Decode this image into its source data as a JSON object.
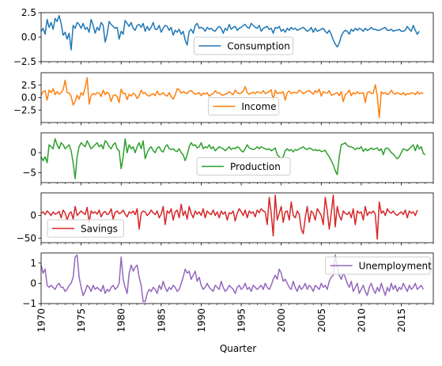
{
  "chart_data": {
    "type": "line",
    "xlabel": "Quarter",
    "x_start": 1970.0,
    "x_step": 0.25,
    "xlim": [
      1970,
      2019
    ],
    "x_ticks": [
      "1970",
      "1975",
      "1980",
      "1985",
      "1990",
      "1995",
      "2000",
      "2005",
      "2010",
      "2015"
    ],
    "legend_placement": "center",
    "panels": [
      {
        "name": "Consumption",
        "color": "#1f77b4",
        "ylim": [
          -2.5,
          2.5
        ],
        "yticks": [
          -2.5,
          0.0,
          2.5
        ],
        "ytick_labels": [
          "−2.5",
          "0.0",
          "2.5"
        ],
        "legend_placement": "center",
        "values": [
          0.6,
          0.9,
          0.3,
          1.8,
          1.0,
          1.5,
          0.8,
          1.9,
          1.6,
          2.2,
          1.4,
          0.2,
          0.5,
          -0.2,
          0.4,
          -1.3,
          1.2,
          0.9,
          1.5,
          1.3,
          0.9,
          1.4,
          0.8,
          1.0,
          0.5,
          1.8,
          1.2,
          0.4,
          1.0,
          0.7,
          1.5,
          1.2,
          -0.5,
          0.3,
          1.6,
          1.3,
          1.1,
          0.9,
          1.0,
          -0.2,
          0.6,
          0.3,
          1.7,
          1.4,
          1.1,
          1.5,
          0.9,
          0.7,
          1.2,
          1.3,
          1.0,
          1.4,
          0.6,
          1.1,
          0.7,
          1.0,
          1.5,
          0.8,
          0.8,
          1.2,
          0.5,
          0.9,
          1.2,
          1.1,
          0.7,
          1.0,
          0.2,
          0.7,
          0.5,
          0.8,
          0.3,
          0.6,
          -0.3,
          -0.8,
          0.6,
          0.8,
          0.4,
          1.2,
          1.4,
          0.9,
          1.0,
          0.9,
          0.6,
          1.0,
          0.8,
          0.9,
          0.7,
          0.6,
          0.9,
          1.1,
          0.9,
          0.4,
          0.9,
          0.7,
          1.3,
          0.8,
          1.0,
          1.1,
          0.7,
          0.9,
          1.0,
          1.2,
          1.3,
          1.0,
          0.9,
          1.4,
          1.2,
          1.0,
          0.9,
          1.2,
          0.6,
          0.9,
          1.0,
          1.1,
          0.8,
          0.9,
          0.4,
          1.0,
          0.9,
          1.1,
          0.6,
          0.8,
          0.5,
          0.9,
          0.7,
          1.0,
          0.8,
          0.9,
          0.7,
          0.8,
          0.9,
          1.0,
          0.8,
          0.6,
          0.7,
          1.0,
          0.5,
          0.9,
          0.6,
          0.7,
          0.8,
          0.9,
          0.6,
          0.4,
          0.7,
          0.3,
          -0.3,
          -0.7,
          -1.0,
          -0.6,
          0.1,
          0.5,
          0.7,
          0.6,
          0.3,
          0.8,
          0.6,
          0.9,
          0.7,
          0.9,
          0.8,
          0.6,
          0.9,
          0.7,
          0.8,
          1.0,
          0.8,
          0.8,
          0.7,
          0.7,
          0.8,
          0.9,
          1.0,
          0.7,
          0.7,
          0.8,
          0.6,
          0.7,
          0.7,
          0.8,
          0.6,
          0.6,
          0.7,
          1.1,
          0.8,
          0.6,
          1.2,
          0.7,
          0.3,
          0.6
        ]
      },
      {
        "name": "Income",
        "color": "#ff7f0e",
        "ylim": [
          -5,
          5
        ],
        "yticks": [
          -2.5,
          0.0,
          2.5
        ],
        "ytick_labels": [
          "−2.5",
          "0.0",
          "2.5"
        ],
        "legend_placement": "center",
        "values": [
          0.5,
          1.2,
          1.4,
          -0.5,
          1.5,
          1.0,
          1.8,
          0.6,
          1.2,
          0.7,
          1.0,
          1.6,
          3.5,
          1.0,
          0.9,
          0.3,
          -1.5,
          -0.8,
          0.5,
          -0.3,
          1.0,
          0.5,
          2.0,
          4.0,
          -1.3,
          0.4,
          0.8,
          0.6,
          1.0,
          0.9,
          0.2,
          1.5,
          0.6,
          1.1,
          0.7,
          -0.8,
          0.4,
          0.6,
          0.2,
          -1.0,
          1.7,
          0.8,
          0.9,
          -0.4,
          0.7,
          0.3,
          0.9,
          0.6,
          -0.2,
          0.4,
          1.5,
          0.8,
          1.0,
          0.5,
          0.3,
          0.6,
          0.8,
          0.4,
          1.3,
          0.6,
          0.7,
          1.0,
          0.5,
          0.3,
          1.0,
          0.2,
          -0.3,
          0.5,
          1.8,
          1.6,
          0.9,
          1.2,
          1.0,
          0.8,
          1.3,
          1.4,
          1.0,
          0.7,
          0.8,
          1.0,
          0.4,
          0.9,
          0.7,
          1.0,
          0.3,
          0.6,
          0.8,
          1.4,
          0.9,
          1.0,
          0.6,
          0.5,
          0.7,
          0.8,
          1.2,
          0.9,
          0.6,
          1.5,
          1.0,
          0.8,
          0.9,
          1.3,
          2.2,
          1.0,
          0.7,
          0.9,
          1.1,
          0.8,
          1.2,
          1.0,
          0.9,
          1.4,
          0.8,
          1.0,
          1.2,
          1.6,
          -0.5,
          1.5,
          0.8,
          1.0,
          0.9,
          1.2,
          -0.5,
          1.0,
          1.3,
          0.8,
          1.1,
          1.0,
          0.9,
          1.5,
          1.2,
          0.8,
          1.0,
          1.3,
          1.4,
          1.0,
          0.7,
          1.4,
          1.0,
          1.7,
          0.3,
          1.2,
          1.0,
          0.9,
          1.4,
          0.5,
          0.6,
          0.8,
          1.0,
          0.4,
          1.2,
          -0.8,
          0.6,
          0.9,
          1.5,
          0.4,
          1.0,
          0.7,
          1.2,
          0.8,
          0.9,
          1.0,
          -1.0,
          1.0,
          1.2,
          0.8,
          0.9,
          2.6,
          0.4,
          -4.0,
          1.2,
          0.8,
          1.0,
          0.6,
          0.8,
          1.5,
          0.9,
          0.7,
          1.0,
          0.8,
          0.6,
          1.0,
          0.5,
          0.8,
          0.7,
          1.0,
          0.9,
          0.6,
          1.2,
          0.7,
          1.0,
          0.8
        ]
      },
      {
        "name": "Production",
        "color": "#2ca02c",
        "ylim": [
          -7.5,
          5
        ],
        "yticks": [
          -5,
          0
        ],
        "ytick_labels": [
          "−5",
          "0"
        ],
        "legend_placement": "center",
        "values": [
          -1.0,
          -2.0,
          -1.0,
          -2.5,
          2.0,
          1.5,
          1.0,
          3.5,
          2.0,
          1.0,
          2.5,
          2.0,
          1.0,
          1.5,
          2.0,
          0.5,
          -2.5,
          -6.5,
          -1.0,
          1.5,
          2.5,
          2.0,
          1.5,
          3.0,
          2.0,
          1.0,
          1.5,
          2.0,
          2.5,
          1.5,
          2.0,
          1.0,
          3.0,
          2.5,
          1.5,
          1.0,
          2.0,
          2.5,
          1.0,
          0.5,
          -4.0,
          -1.0,
          3.5,
          0.0,
          2.0,
          1.0,
          1.5,
          0.0,
          1.5,
          2.5,
          1.0,
          3.0,
          -1.5,
          0.0,
          1.0,
          1.5,
          0.5,
          0.0,
          1.2,
          1.5,
          0.5,
          0.2,
          1.5,
          2.0,
          1.0,
          0.8,
          1.0,
          0.5,
          0.3,
          1.0,
          0.0,
          -0.5,
          -2.0,
          -0.5,
          1.5,
          2.5,
          1.8,
          2.0,
          1.2,
          1.5,
          2.5,
          1.0,
          1.5,
          1.2,
          2.0,
          1.0,
          1.5,
          0.5,
          1.0,
          1.5,
          1.2,
          1.0,
          0.5,
          1.0,
          1.5,
          0.8,
          1.2,
          1.0,
          1.5,
          1.2,
          0.5,
          0.2,
          1.0,
          2.0,
          1.2,
          1.0,
          0.8,
          1.0,
          1.5,
          1.0,
          1.5,
          1.2,
          1.0,
          0.8,
          1.0,
          0.5,
          0.8,
          1.2,
          -0.5,
          -1.0,
          -1.5,
          -1.0,
          0.5,
          1.0,
          0.5,
          0.8,
          0.2,
          0.8,
          0.6,
          1.0,
          1.2,
          1.5,
          1.0,
          0.8,
          1.2,
          1.0,
          0.6,
          0.8,
          0.5,
          0.7,
          0.3,
          0.4,
          0.6,
          -0.3,
          -1.0,
          -2.0,
          -3.0,
          -4.5,
          -5.5,
          -1.0,
          2.0,
          2.2,
          2.5,
          1.8,
          1.5,
          1.5,
          1.2,
          0.8,
          1.2,
          1.0,
          1.5,
          0.3,
          1.0,
          0.5,
          0.8,
          1.2,
          0.8,
          1.0,
          1.2,
          0.5,
          1.0,
          -0.5,
          1.0,
          1.2,
          0.8,
          0.0,
          -0.3,
          -1.0,
          -1.5,
          -1.0,
          0.0,
          1.0,
          0.8,
          0.5,
          1.0,
          1.5,
          2.0,
          0.5,
          2.0,
          1.0,
          1.5,
          -0.2,
          -0.5
        ]
      },
      {
        "name": "Savings",
        "color": "#d62728",
        "ylim": [
          -60,
          50
        ],
        "yticks": [
          -50,
          0
        ],
        "ytick_labels": [
          "−50",
          "0"
        ],
        "legend_placement": "lower left",
        "values": [
          5,
          8,
          2,
          10,
          6,
          0,
          8,
          3,
          5,
          9,
          -5,
          12,
          6,
          -10,
          4,
          8,
          -8,
          20,
          0,
          5,
          10,
          6,
          2,
          18,
          -15,
          10,
          5,
          8,
          3,
          12,
          -3,
          6,
          9,
          2,
          5,
          15,
          -8,
          7,
          10,
          4,
          6,
          12,
          3,
          -3,
          8,
          5,
          10,
          2,
          15,
          -30,
          5,
          10,
          8,
          0,
          4,
          12,
          6,
          2,
          10,
          -5,
          3,
          20,
          -20,
          10,
          5,
          15,
          -10,
          8,
          12,
          -5,
          25,
          0,
          10,
          -8,
          20,
          5,
          -5,
          10,
          3,
          8,
          0,
          15,
          -5,
          10,
          5,
          2,
          12,
          0,
          8,
          -5,
          10,
          3,
          8,
          -10,
          6,
          4,
          10,
          -12,
          5,
          15,
          8,
          0,
          12,
          -5,
          10,
          5,
          8,
          -3,
          12,
          6,
          15,
          10,
          8,
          -20,
          40,
          5,
          -45,
          45,
          -10,
          5,
          20,
          -15,
          8,
          10,
          -10,
          30,
          0,
          -5,
          10,
          3,
          -30,
          -40,
          -5,
          20,
          -15,
          10,
          5,
          -10,
          15,
          8,
          0,
          -20,
          40,
          10,
          -30,
          5,
          45,
          -25,
          20,
          0,
          -10,
          10,
          5,
          2,
          8,
          -5,
          15,
          -20,
          10,
          5,
          8,
          -10,
          20,
          0,
          8,
          5,
          10,
          3,
          -52,
          30,
          5,
          10,
          0,
          15,
          8,
          5,
          10,
          3,
          0,
          5,
          8,
          2,
          12,
          -5,
          10,
          5,
          8,
          0,
          12
        ]
      },
      {
        "name": "Unemployment",
        "color": "#9467bd",
        "ylim": [
          -1,
          1.5
        ],
        "yticks": [
          -1,
          0,
          1
        ],
        "ytick_labels": [
          "−1",
          "0",
          "1"
        ],
        "legend_placement": "upper right",
        "values": [
          0.9,
          0.5,
          0.7,
          -0.1,
          -0.2,
          -0.1,
          -0.2,
          -0.3,
          -0.1,
          0.0,
          -0.2,
          -0.2,
          -0.4,
          -0.3,
          -0.1,
          0.0,
          0.3,
          1.3,
          1.4,
          0.3,
          -0.2,
          -0.6,
          -0.4,
          -0.1,
          -0.2,
          -0.4,
          -0.1,
          -0.3,
          -0.2,
          -0.3,
          -0.4,
          -0.1,
          -0.5,
          -0.3,
          -0.4,
          -0.2,
          -0.1,
          -0.3,
          -0.2,
          0.0,
          1.3,
          0.2,
          -0.2,
          -0.5,
          0.5,
          0.9,
          0.6,
          0.8,
          0.9,
          0.3,
          -0.1,
          -0.9,
          -0.9,
          -0.5,
          -0.3,
          -0.4,
          -0.2,
          -0.3,
          -0.5,
          -0.1,
          -0.3,
          0.1,
          -0.2,
          -0.4,
          -0.2,
          -0.3,
          -0.1,
          -0.2,
          -0.4,
          -0.3,
          0.0,
          0.3,
          0.7,
          0.5,
          0.6,
          0.2,
          0.4,
          0.6,
          0.1,
          0.3,
          -0.1,
          -0.3,
          -0.2,
          0.0,
          -0.2,
          -0.3,
          -0.4,
          -0.1,
          -0.2,
          -0.3,
          0.1,
          -0.2,
          -0.4,
          -0.3,
          -0.1,
          -0.2,
          -0.3,
          -0.5,
          -0.2,
          -0.1,
          -0.3,
          -0.2,
          0.0,
          -0.3,
          -0.2,
          -0.4,
          -0.1,
          -0.2,
          -0.3,
          -0.2,
          -0.1,
          -0.3,
          0.0,
          -0.2,
          -0.3,
          -0.1,
          0.2,
          0.4,
          0.2,
          0.7,
          0.5,
          0.1,
          0.2,
          0.0,
          -0.2,
          -0.3,
          0.1,
          -0.2,
          -0.4,
          -0.1,
          -0.3,
          -0.2,
          0.0,
          -0.3,
          -0.1,
          -0.2,
          -0.4,
          -0.1,
          -0.2,
          -0.3,
          0.0,
          -0.2,
          -0.1,
          -0.3,
          0.1,
          0.3,
          0.4,
          1.4,
          0.8,
          0.4,
          0.2,
          0.5,
          0.3,
          0.0,
          -0.2,
          0.1,
          -0.4,
          -0.2,
          0.0,
          -0.5,
          -0.3,
          -0.1,
          -0.4,
          -0.6,
          -0.2,
          0.0,
          -0.3,
          -0.5,
          -0.2,
          -0.4,
          0.0,
          -0.3,
          -0.6,
          -0.2,
          -0.4,
          0.0,
          -0.3,
          -0.1,
          -0.4,
          -0.2,
          -0.3,
          0.0,
          -0.2,
          -0.4,
          -0.1,
          -0.3,
          -0.2,
          0.0,
          -0.3,
          -0.2,
          -0.1,
          -0.3
        ]
      }
    ]
  }
}
